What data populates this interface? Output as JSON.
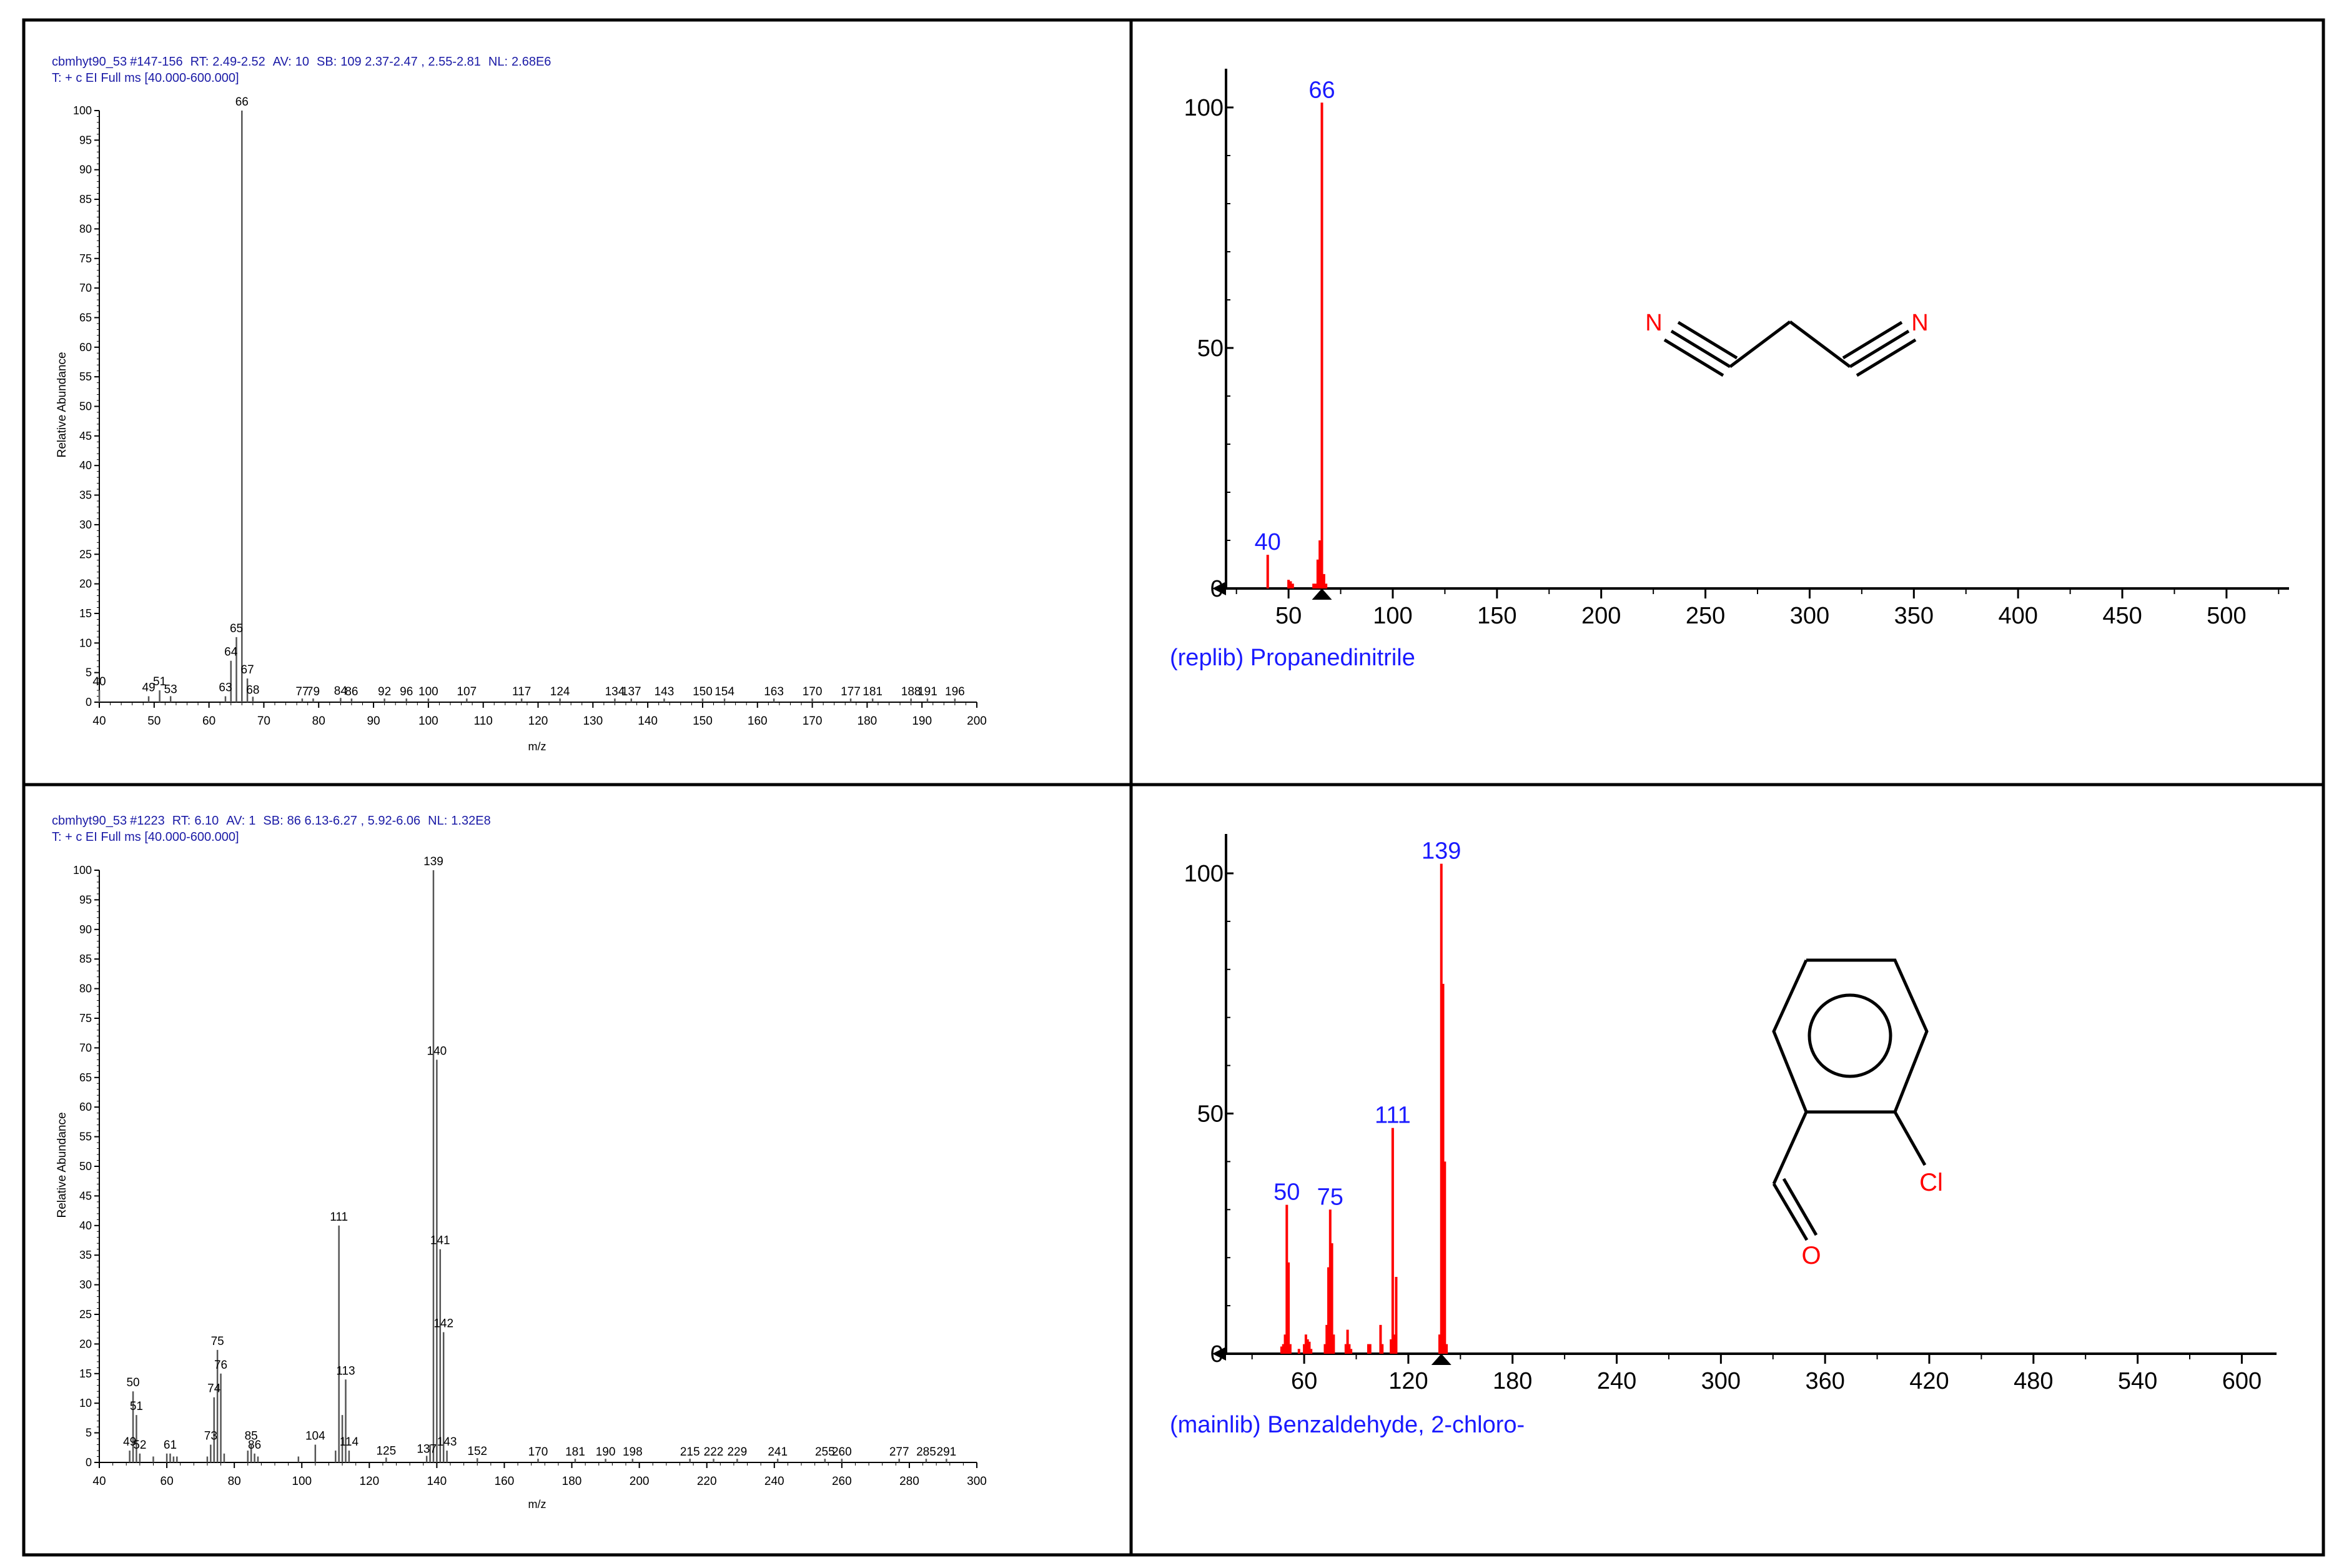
{
  "chart_data": [
    {
      "type": "bar",
      "panel": "top-left",
      "header_line1": {
        "file": "cbmhyt90_53",
        "scan": "#147-156",
        "rt_label": "RT:",
        "rt_value": "2.49-2.52",
        "av_label": "AV:",
        "av_value": "10",
        "sb_label": "SB:",
        "sb_value": "109  2.37-2.47 , 2.55-2.81",
        "nl_label": "NL:",
        "nl_value": "2.68E6"
      },
      "header_line2": "T: + c EI Full ms [40.000-600.000]",
      "xlabel": "m/z",
      "ylabel": "Relative Abundance",
      "xlim": [
        40,
        200
      ],
      "ylim": [
        0,
        100
      ],
      "xticks": [
        40,
        50,
        60,
        70,
        80,
        90,
        100,
        110,
        120,
        130,
        140,
        150,
        160,
        170,
        180,
        190,
        200
      ],
      "yticks": [
        0,
        5,
        10,
        15,
        20,
        25,
        30,
        35,
        40,
        45,
        50,
        55,
        60,
        65,
        70,
        75,
        80,
        85,
        90,
        95,
        100
      ],
      "peaks": [
        {
          "mz": 40,
          "y": 2
        },
        {
          "mz": 49,
          "y": 1
        },
        {
          "mz": 51,
          "y": 2
        },
        {
          "mz": 53,
          "y": 0.7
        },
        {
          "mz": 63,
          "y": 1
        },
        {
          "mz": 64,
          "y": 7
        },
        {
          "mz": 65,
          "y": 11
        },
        {
          "mz": 66,
          "y": 100
        },
        {
          "mz": 67,
          "y": 4
        },
        {
          "mz": 68,
          "y": 0.6
        },
        {
          "mz": 77,
          "y": 0.3
        },
        {
          "mz": 79,
          "y": 0.3
        },
        {
          "mz": 84,
          "y": 0.4
        },
        {
          "mz": 86,
          "y": 0.3
        },
        {
          "mz": 92,
          "y": 0.3
        },
        {
          "mz": 96,
          "y": 0.3
        },
        {
          "mz": 100,
          "y": 0.3
        },
        {
          "mz": 107,
          "y": 0.3
        },
        {
          "mz": 117,
          "y": 0.3
        },
        {
          "mz": 124,
          "y": 0.3
        },
        {
          "mz": 134,
          "y": 0.3
        },
        {
          "mz": 137,
          "y": 0.3
        },
        {
          "mz": 143,
          "y": 0.3
        },
        {
          "mz": 150,
          "y": 0.3
        },
        {
          "mz": 154,
          "y": 0.3
        },
        {
          "mz": 163,
          "y": 0.3
        },
        {
          "mz": 170,
          "y": 0.3
        },
        {
          "mz": 177,
          "y": 0.3
        },
        {
          "mz": 181,
          "y": 0.3
        },
        {
          "mz": 188,
          "y": 0.3
        },
        {
          "mz": 191,
          "y": 0.3
        },
        {
          "mz": 196,
          "y": 0.3
        }
      ],
      "labels": [
        {
          "text": "40",
          "mz": 40,
          "y": 2
        },
        {
          "text": "49",
          "mz": 49,
          "y": 1
        },
        {
          "text": "51",
          "mz": 51,
          "y": 2
        },
        {
          "text": "53",
          "mz": 53,
          "y": 0.7
        },
        {
          "text": "63",
          "mz": 63,
          "y": 1
        },
        {
          "text": "64",
          "mz": 64,
          "y": 7
        },
        {
          "text": "65",
          "mz": 65,
          "y": 11
        },
        {
          "text": "66",
          "mz": 66,
          "y": 100
        },
        {
          "text": "67",
          "mz": 67,
          "y": 4
        },
        {
          "text": "68",
          "mz": 68,
          "y": 0.6
        },
        {
          "text": "77",
          "mz": 77,
          "y": 0.3
        },
        {
          "text": "79",
          "mz": 79,
          "y": 0.3
        },
        {
          "text": "84",
          "mz": 84,
          "y": 0.4
        },
        {
          "text": "86",
          "mz": 86,
          "y": 0.3
        },
        {
          "text": "92",
          "mz": 92,
          "y": 0.3
        },
        {
          "text": "96",
          "mz": 96,
          "y": 0.3
        },
        {
          "text": "100",
          "mz": 100,
          "y": 0.3
        },
        {
          "text": "107",
          "mz": 107,
          "y": 0.3
        },
        {
          "text": "117",
          "mz": 117,
          "y": 0.3
        },
        {
          "text": "124",
          "mz": 124,
          "y": 0.3
        },
        {
          "text": "134",
          "mz": 134,
          "y": 0.3
        },
        {
          "text": "137",
          "mz": 137,
          "y": 0.3
        },
        {
          "text": "143",
          "mz": 143,
          "y": 0.3
        },
        {
          "text": "150",
          "mz": 150,
          "y": 0.3
        },
        {
          "text": "154",
          "mz": 154,
          "y": 0.3
        },
        {
          "text": "163",
          "mz": 163,
          "y": 0.3
        },
        {
          "text": "170",
          "mz": 170,
          "y": 0.3
        },
        {
          "text": "177",
          "mz": 177,
          "y": 0.3
        },
        {
          "text": "181",
          "mz": 181,
          "y": 0.3
        },
        {
          "text": "188",
          "mz": 188,
          "y": 0.3
        },
        {
          "text": "191",
          "mz": 191,
          "y": 0.3
        },
        {
          "text": "196",
          "mz": 196,
          "y": 0.3
        }
      ],
      "colors": {
        "header": "#1a1aa6",
        "peaks": "#555555",
        "text": "#000000"
      }
    },
    {
      "type": "bar",
      "panel": "top-right",
      "library_label": "(replib) Propanedinitrile",
      "xlim": [
        20,
        530
      ],
      "ylim": [
        0,
        100
      ],
      "xticks": [
        50,
        100,
        150,
        200,
        250,
        300,
        350,
        400,
        450,
        500
      ],
      "yticks": [
        0,
        50,
        100
      ],
      "marker_mz": 66,
      "peaks": [
        {
          "mz": 40,
          "y": 7
        },
        {
          "mz": 50,
          "y": 1.8
        },
        {
          "mz": 51,
          "y": 1.5
        },
        {
          "mz": 52,
          "y": 1
        },
        {
          "mz": 62,
          "y": 1
        },
        {
          "mz": 63,
          "y": 1
        },
        {
          "mz": 64,
          "y": 6
        },
        {
          "mz": 65,
          "y": 10
        },
        {
          "mz": 66,
          "y": 101
        },
        {
          "mz": 67,
          "y": 3
        },
        {
          "mz": 68,
          "y": 1
        }
      ],
      "labels": [
        {
          "text": "40",
          "mz": 40,
          "y": 7
        },
        {
          "text": "66",
          "mz": 66,
          "y": 101
        }
      ],
      "structure": {
        "atom_n_left": "N",
        "atom_n_right": "N"
      },
      "colors": {
        "peaks": "#ff0000",
        "labels": "#1a1aff",
        "library_label": "#1a1aff",
        "atom": "#ff0000"
      }
    },
    {
      "type": "bar",
      "panel": "bottom-left",
      "header_line1": {
        "file": "cbmhyt90_53",
        "scan": "#1223",
        "rt_label": "RT:",
        "rt_value": "6.10",
        "av_label": "AV:",
        "av_value": "1",
        "sb_label": "SB:",
        "sb_value": "86  6.13-6.27 , 5.92-6.06",
        "nl_label": "NL:",
        "nl_value": "1.32E8"
      },
      "header_line2": "T: + c EI Full ms [40.000-600.000]",
      "xlabel": "m/z",
      "ylabel": "Relative Abundance",
      "xlim": [
        40,
        300
      ],
      "ylim": [
        0,
        100
      ],
      "xticks": [
        40,
        60,
        80,
        100,
        120,
        140,
        160,
        180,
        200,
        220,
        240,
        260,
        280,
        300
      ],
      "yticks": [
        0,
        5,
        10,
        15,
        20,
        25,
        30,
        35,
        40,
        45,
        50,
        55,
        60,
        65,
        70,
        75,
        80,
        85,
        90,
        95,
        100
      ],
      "peaks": [
        {
          "mz": 49,
          "y": 2
        },
        {
          "mz": 50,
          "y": 12
        },
        {
          "mz": 51,
          "y": 8
        },
        {
          "mz": 52,
          "y": 1.5
        },
        {
          "mz": 56,
          "y": 1
        },
        {
          "mz": 60,
          "y": 1.5
        },
        {
          "mz": 61,
          "y": 1.5
        },
        {
          "mz": 62,
          "y": 1
        },
        {
          "mz": 63,
          "y": 1
        },
        {
          "mz": 72,
          "y": 1
        },
        {
          "mz": 73,
          "y": 3
        },
        {
          "mz": 74,
          "y": 11
        },
        {
          "mz": 75,
          "y": 19
        },
        {
          "mz": 76,
          "y": 15
        },
        {
          "mz": 77,
          "y": 1.5
        },
        {
          "mz": 84,
          "y": 2
        },
        {
          "mz": 85,
          "y": 3
        },
        {
          "mz": 86,
          "y": 1.5
        },
        {
          "mz": 87,
          "y": 1
        },
        {
          "mz": 99,
          "y": 1
        },
        {
          "mz": 104,
          "y": 3
        },
        {
          "mz": 110,
          "y": 2
        },
        {
          "mz": 111,
          "y": 40
        },
        {
          "mz": 112,
          "y": 8
        },
        {
          "mz": 113,
          "y": 14
        },
        {
          "mz": 114,
          "y": 2
        },
        {
          "mz": 125,
          "y": 0.5
        },
        {
          "mz": 137,
          "y": 0.8
        },
        {
          "mz": 138,
          "y": 3
        },
        {
          "mz": 139,
          "y": 100
        },
        {
          "mz": 140,
          "y": 68
        },
        {
          "mz": 141,
          "y": 36
        },
        {
          "mz": 142,
          "y": 22
        },
        {
          "mz": 143,
          "y": 2
        },
        {
          "mz": 152,
          "y": 0.4
        },
        {
          "mz": 170,
          "y": 0.3
        },
        {
          "mz": 181,
          "y": 0.3
        },
        {
          "mz": 190,
          "y": 0.3
        },
        {
          "mz": 198,
          "y": 0.3
        },
        {
          "mz": 215,
          "y": 0.3
        },
        {
          "mz": 222,
          "y": 0.3
        },
        {
          "mz": 229,
          "y": 0.3
        },
        {
          "mz": 241,
          "y": 0.3
        },
        {
          "mz": 255,
          "y": 0.3
        },
        {
          "mz": 260,
          "y": 0.3
        },
        {
          "mz": 277,
          "y": 0.3
        },
        {
          "mz": 285,
          "y": 0.3
        },
        {
          "mz": 291,
          "y": 0.3
        }
      ],
      "labels": [
        {
          "text": "49",
          "mz": 49,
          "y": 2
        },
        {
          "text": "50",
          "mz": 50,
          "y": 12
        },
        {
          "text": "51",
          "mz": 51,
          "y": 8
        },
        {
          "text": "52",
          "mz": 52,
          "y": 1.5
        },
        {
          "text": "61",
          "mz": 61,
          "y": 1.5
        },
        {
          "text": "73",
          "mz": 73,
          "y": 3
        },
        {
          "text": "74",
          "mz": 74,
          "y": 11
        },
        {
          "text": "75",
          "mz": 75,
          "y": 19
        },
        {
          "text": "76",
          "mz": 76,
          "y": 15
        },
        {
          "text": "85",
          "mz": 85,
          "y": 3
        },
        {
          "text": "86",
          "mz": 86,
          "y": 1.5
        },
        {
          "text": "104",
          "mz": 104,
          "y": 3
        },
        {
          "text": "111",
          "mz": 111,
          "y": 40
        },
        {
          "text": "113",
          "mz": 113,
          "y": 14
        },
        {
          "text": "114",
          "mz": 114,
          "y": 2
        },
        {
          "text": "125",
          "mz": 125,
          "y": 0.5
        },
        {
          "text": "137",
          "mz": 137,
          "y": 0.8
        },
        {
          "text": "139",
          "mz": 139,
          "y": 100
        },
        {
          "text": "140",
          "mz": 140,
          "y": 68
        },
        {
          "text": "141",
          "mz": 141,
          "y": 36
        },
        {
          "text": "142",
          "mz": 142,
          "y": 22
        },
        {
          "text": "143",
          "mz": 143,
          "y": 2
        },
        {
          "text": "152",
          "mz": 152,
          "y": 0.4
        },
        {
          "text": "170",
          "mz": 170,
          "y": 0.3
        },
        {
          "text": "181",
          "mz": 181,
          "y": 0.3
        },
        {
          "text": "190",
          "mz": 190,
          "y": 0.3
        },
        {
          "text": "198",
          "mz": 198,
          "y": 0.3
        },
        {
          "text": "215",
          "mz": 215,
          "y": 0.3
        },
        {
          "text": "222",
          "mz": 222,
          "y": 0.3
        },
        {
          "text": "229",
          "mz": 229,
          "y": 0.3
        },
        {
          "text": "241",
          "mz": 241,
          "y": 0.3
        },
        {
          "text": "255",
          "mz": 255,
          "y": 0.3
        },
        {
          "text": "260",
          "mz": 260,
          "y": 0.3
        },
        {
          "text": "277",
          "mz": 277,
          "y": 0.3
        },
        {
          "text": "285",
          "mz": 285,
          "y": 0.3
        },
        {
          "text": "291",
          "mz": 291,
          "y": 0.3
        }
      ],
      "colors": {
        "header": "#1a1aa6",
        "peaks": "#555555",
        "text": "#000000"
      }
    },
    {
      "type": "bar",
      "panel": "bottom-right",
      "library_label": "(mainlib) Benzaldehyde, 2-chloro-",
      "xlim": [
        15,
        620
      ],
      "ylim": [
        0,
        100
      ],
      "xticks": [
        60,
        120,
        180,
        240,
        300,
        360,
        420,
        480,
        540,
        600
      ],
      "yticks": [
        0,
        50,
        100
      ],
      "marker_mz": 139,
      "peaks": [
        {
          "mz": 47,
          "y": 1.5
        },
        {
          "mz": 48,
          "y": 2
        },
        {
          "mz": 49,
          "y": 4
        },
        {
          "mz": 50,
          "y": 31
        },
        {
          "mz": 51,
          "y": 19
        },
        {
          "mz": 52,
          "y": 2
        },
        {
          "mz": 57,
          "y": 1
        },
        {
          "mz": 60,
          "y": 2
        },
        {
          "mz": 61,
          "y": 4
        },
        {
          "mz": 62,
          "y": 3
        },
        {
          "mz": 63,
          "y": 2.5
        },
        {
          "mz": 64,
          "y": 1
        },
        {
          "mz": 72,
          "y": 2
        },
        {
          "mz": 73,
          "y": 6
        },
        {
          "mz": 74,
          "y": 18
        },
        {
          "mz": 75,
          "y": 30
        },
        {
          "mz": 76,
          "y": 23
        },
        {
          "mz": 77,
          "y": 4
        },
        {
          "mz": 84,
          "y": 2
        },
        {
          "mz": 85,
          "y": 5
        },
        {
          "mz": 86,
          "y": 2
        },
        {
          "mz": 87,
          "y": 1
        },
        {
          "mz": 97,
          "y": 2
        },
        {
          "mz": 98,
          "y": 2
        },
        {
          "mz": 104,
          "y": 6
        },
        {
          "mz": 105,
          "y": 2
        },
        {
          "mz": 110,
          "y": 3
        },
        {
          "mz": 111,
          "y": 47
        },
        {
          "mz": 112,
          "y": 4
        },
        {
          "mz": 113,
          "y": 16
        },
        {
          "mz": 138,
          "y": 4
        },
        {
          "mz": 139,
          "y": 102
        },
        {
          "mz": 140,
          "y": 77
        },
        {
          "mz": 141,
          "y": 40
        },
        {
          "mz": 142,
          "y": 2
        }
      ],
      "labels": [
        {
          "text": "50",
          "mz": 50,
          "y": 31
        },
        {
          "text": "75",
          "mz": 75,
          "y": 30
        },
        {
          "text": "111",
          "mz": 111,
          "y": 47
        },
        {
          "text": "139",
          "mz": 139,
          "y": 102
        }
      ],
      "structure": {
        "atom_cl": "Cl",
        "atom_o": "O"
      },
      "colors": {
        "peaks": "#ff0000",
        "labels": "#1a1aff",
        "library_label": "#1a1aff",
        "atom": "#ff0000"
      }
    }
  ]
}
